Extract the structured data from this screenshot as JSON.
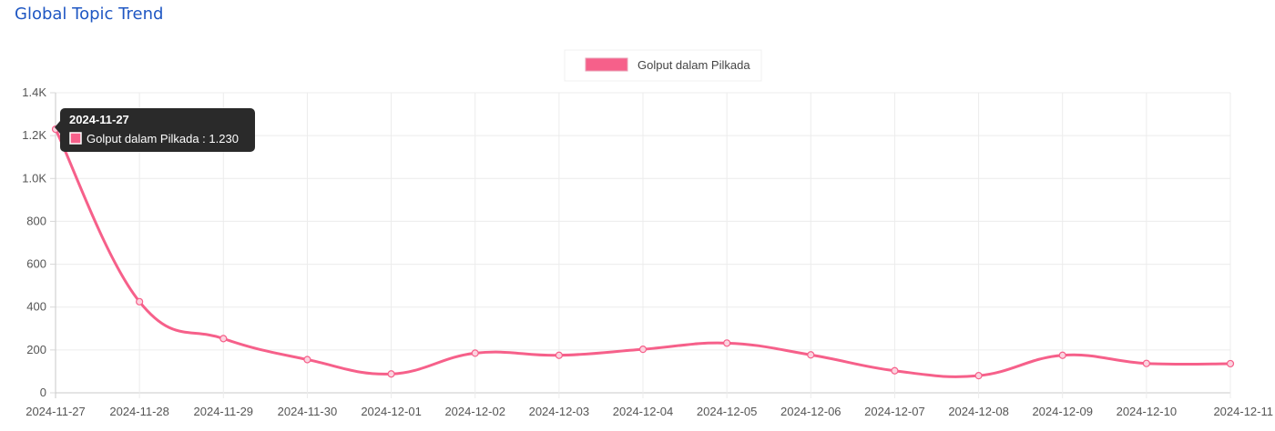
{
  "header": {
    "title": "Global Topic Trend"
  },
  "colors": {
    "series": "#f6608a",
    "title": "#1f57c3",
    "tooltip_bg": "#2a2a2a"
  },
  "tooltip": {
    "date": "2024-11-27",
    "text": "Golput dalam Pilkada : 1.230"
  },
  "chart_data": {
    "type": "line",
    "x": [
      "2024-11-27",
      "2024-11-28",
      "2024-11-29",
      "2024-11-30",
      "2024-12-01",
      "2024-12-02",
      "2024-12-03",
      "2024-12-04",
      "2024-12-05",
      "2024-12-06",
      "2024-12-07",
      "2024-12-08",
      "2024-12-09",
      "2024-12-10",
      "2024-12-11"
    ],
    "series": [
      {
        "name": "Golput dalam Pilkada",
        "values": [
          1230,
          425,
          253,
          155,
          88,
          185,
          175,
          203,
          232,
          177,
          103,
          80,
          175,
          137,
          136
        ]
      }
    ],
    "y_ticks": [
      "0",
      "200",
      "400",
      "600",
      "800",
      "1.0K",
      "1.2K",
      "1.4K"
    ],
    "ylim": [
      0,
      1400
    ],
    "grid": true,
    "legend_position": "top-center"
  }
}
